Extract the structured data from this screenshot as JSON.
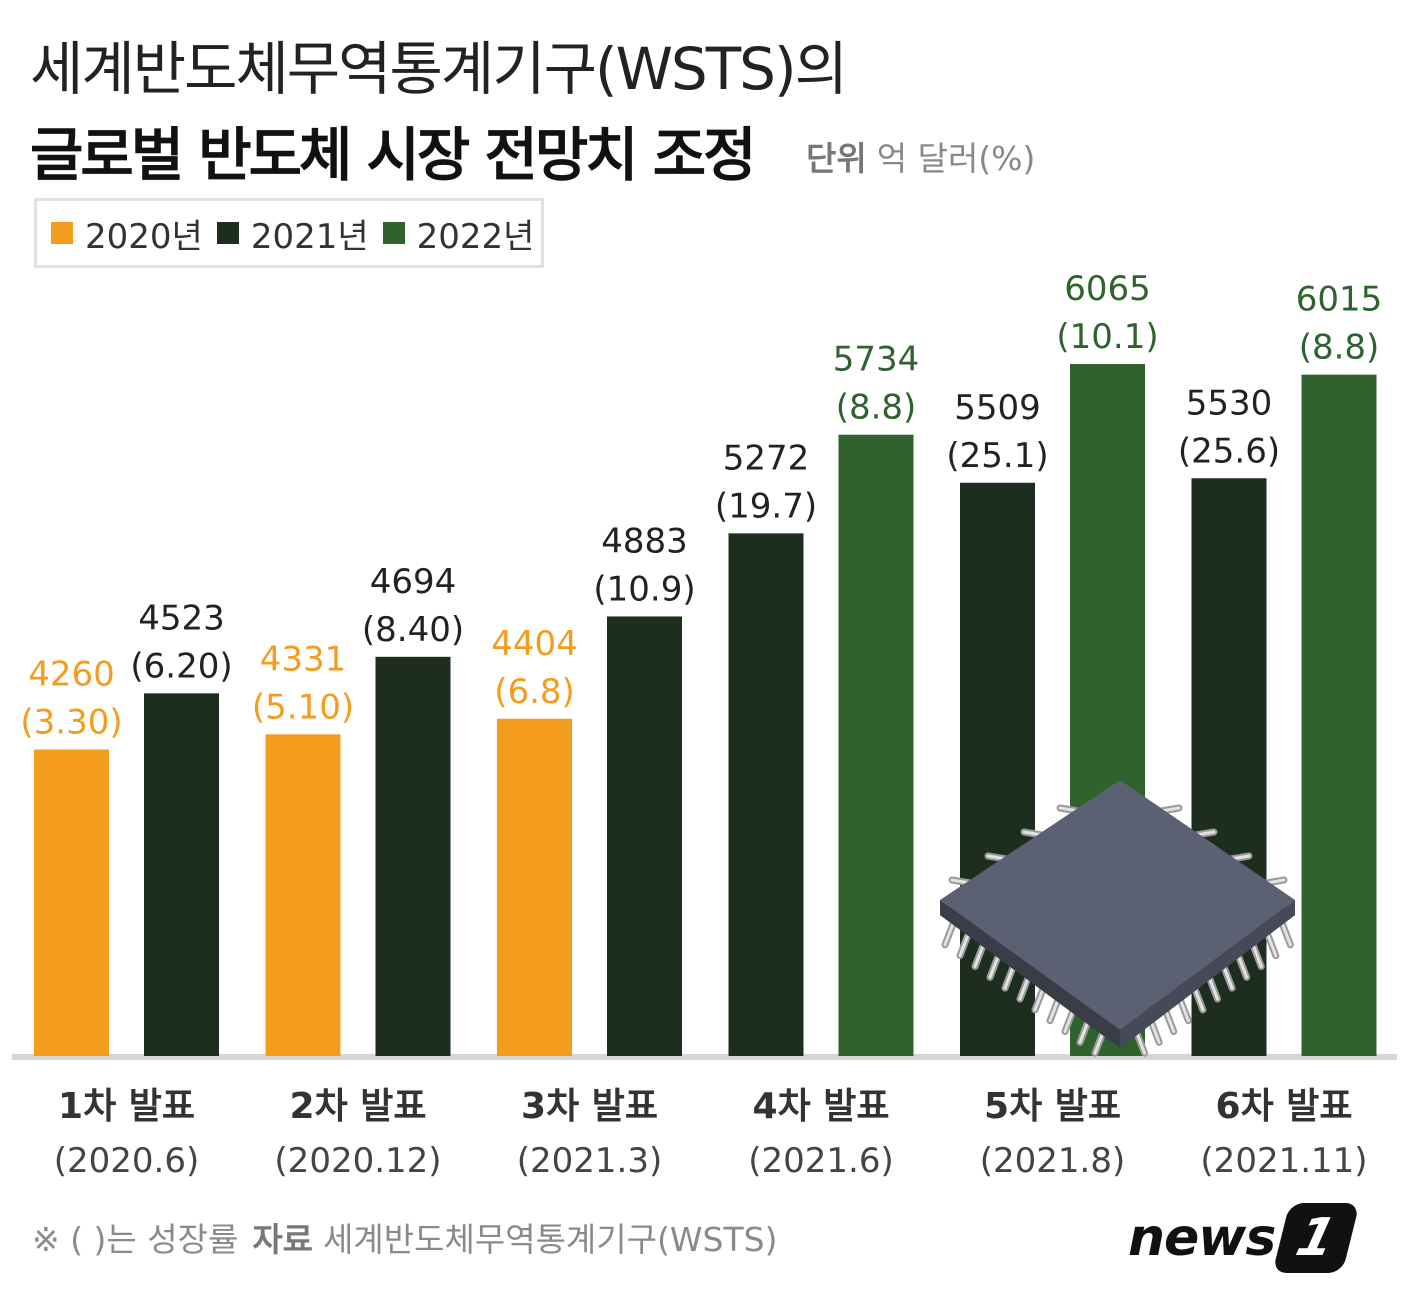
{
  "header": {
    "title_line1": "세계반도체무역통계기구(WSTS)의",
    "title_line2": "글로벌 반도체 시장 전망치 조정",
    "unit_label": "단위",
    "unit_value": "억 달러(%)"
  },
  "legend": {
    "items": [
      {
        "label": "2020년",
        "color": "#f39c1e"
      },
      {
        "label": "2021년",
        "color": "#1e2e1e"
      },
      {
        "label": "2022년",
        "color": "#2f622d"
      }
    ]
  },
  "chart_data": {
    "type": "bar",
    "title": "글로벌 반도체 시장 전망치 조정",
    "unit": "억 달러(%)",
    "categories": [
      {
        "label": "1차 발표",
        "date": "(2020.6)"
      },
      {
        "label": "2차 발표",
        "date": "(2020.12)"
      },
      {
        "label": "3차 발표",
        "date": "(2021.3)"
      },
      {
        "label": "4차 발표",
        "date": "(2021.6)"
      },
      {
        "label": "5차 발표",
        "date": "(2021.8)"
      },
      {
        "label": "6차 발표",
        "date": "(2021.11)"
      }
    ],
    "series": [
      {
        "name": "2020년",
        "color": "#f39c1e",
        "label_color": "#f39c1e",
        "values": [
          4260,
          4331,
          4404,
          null,
          null,
          null
        ],
        "growth": [
          "(3.30)",
          "(5.10)",
          "(6.8)",
          null,
          null,
          null
        ]
      },
      {
        "name": "2021년",
        "color": "#1e2e1e",
        "label_color": "#222222",
        "values": [
          4523,
          4694,
          4883,
          5272,
          5509,
          5530
        ],
        "growth": [
          "(6.20)",
          "(8.40)",
          "(10.9)",
          "(19.7)",
          "(25.1)",
          "(25.6)"
        ]
      },
      {
        "name": "2022년",
        "color": "#2f622d",
        "label_color": "#2f622d",
        "values": [
          null,
          null,
          null,
          5734,
          6065,
          6015
        ],
        "growth": [
          null,
          null,
          null,
          "(8.8)",
          "(10.1)",
          "(8.8)"
        ]
      }
    ],
    "ylim": [
      2825,
      6065
    ]
  },
  "footer": {
    "note": "※ ( )는 성장률",
    "source_label": "자료",
    "source_value": "세계반도체무역통계기구(WSTS)",
    "logo_text": "news",
    "logo_number": "1"
  }
}
